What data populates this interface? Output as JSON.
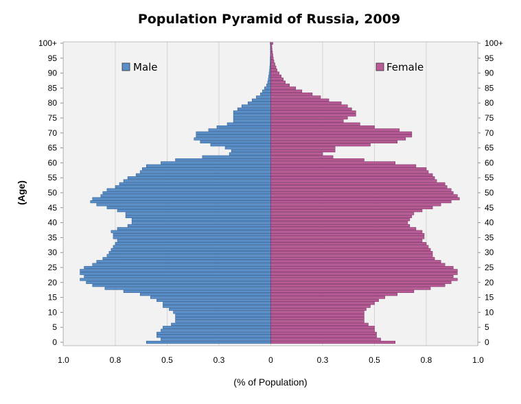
{
  "chart_data": {
    "type": "bar",
    "orientation": "horizontal-pyramid",
    "title": "Population Pyramid of Russia, 2009",
    "xlabel": "(% of Population)",
    "ylabel": "(Age)",
    "xlim": [
      0,
      1.0
    ],
    "x_tick_labels": [
      "1.0",
      "0.8",
      "0.5",
      "0.3",
      "0",
      "0.3",
      "0.5",
      "0.8",
      "1.0"
    ],
    "x_tick_values": [
      1.0,
      0.75,
      0.5,
      0.25,
      0,
      0.25,
      0.5,
      0.75,
      1.0
    ],
    "y_tick_labels": [
      "0",
      "5",
      "10",
      "15",
      "20",
      "25",
      "30",
      "35",
      "40",
      "45",
      "50",
      "55",
      "60",
      "65",
      "70",
      "75",
      "80",
      "85",
      "90",
      "95",
      "100+"
    ],
    "ages": [
      0,
      1,
      2,
      3,
      4,
      5,
      6,
      7,
      8,
      9,
      10,
      11,
      12,
      13,
      14,
      15,
      16,
      17,
      18,
      19,
      20,
      21,
      22,
      23,
      24,
      25,
      26,
      27,
      28,
      29,
      30,
      31,
      32,
      33,
      34,
      35,
      36,
      37,
      38,
      39,
      40,
      41,
      42,
      43,
      44,
      45,
      46,
      47,
      48,
      49,
      50,
      51,
      52,
      53,
      54,
      55,
      56,
      57,
      58,
      59,
      60,
      61,
      62,
      63,
      64,
      65,
      66,
      67,
      68,
      69,
      70,
      71,
      72,
      73,
      74,
      75,
      76,
      77,
      78,
      79,
      80,
      81,
      82,
      83,
      84,
      85,
      86,
      87,
      88,
      89,
      90,
      91,
      92,
      93,
      94,
      95,
      96,
      97,
      98,
      99,
      100
    ],
    "series": [
      {
        "name": "Male",
        "color": "#5b8fc9",
        "values": [
          0.6,
          0.53,
          0.55,
          0.55,
          0.53,
          0.52,
          0.48,
          0.46,
          0.46,
          0.46,
          0.47,
          0.49,
          0.52,
          0.52,
          0.55,
          0.58,
          0.63,
          0.71,
          0.8,
          0.86,
          0.89,
          0.92,
          0.9,
          0.92,
          0.92,
          0.9,
          0.86,
          0.84,
          0.81,
          0.79,
          0.78,
          0.77,
          0.76,
          0.75,
          0.74,
          0.76,
          0.76,
          0.77,
          0.74,
          0.69,
          0.67,
          0.67,
          0.7,
          0.7,
          0.74,
          0.79,
          0.84,
          0.87,
          0.86,
          0.82,
          0.81,
          0.79,
          0.75,
          0.73,
          0.71,
          0.69,
          0.65,
          0.63,
          0.62,
          0.6,
          0.53,
          0.46,
          0.33,
          0.2,
          0.19,
          0.22,
          0.29,
          0.34,
          0.37,
          0.36,
          0.36,
          0.3,
          0.26,
          0.21,
          0.18,
          0.18,
          0.18,
          0.18,
          0.16,
          0.14,
          0.11,
          0.09,
          0.07,
          0.05,
          0.04,
          0.03,
          0.02,
          0.015,
          0.012,
          0.01,
          0.008,
          0.006,
          0.005,
          0.004,
          0.003,
          0.003,
          0.002,
          0.002,
          0.002,
          0.002,
          0.003
        ]
      },
      {
        "name": "Female",
        "color": "#b85b96",
        "values": [
          0.6,
          0.53,
          0.51,
          0.51,
          0.5,
          0.5,
          0.47,
          0.45,
          0.45,
          0.45,
          0.45,
          0.46,
          0.48,
          0.5,
          0.52,
          0.55,
          0.61,
          0.69,
          0.77,
          0.84,
          0.87,
          0.9,
          0.88,
          0.9,
          0.9,
          0.88,
          0.84,
          0.82,
          0.79,
          0.78,
          0.78,
          0.77,
          0.76,
          0.75,
          0.73,
          0.74,
          0.74,
          0.73,
          0.7,
          0.67,
          0.66,
          0.67,
          0.68,
          0.69,
          0.73,
          0.78,
          0.82,
          0.87,
          0.91,
          0.9,
          0.88,
          0.87,
          0.85,
          0.84,
          0.8,
          0.79,
          0.78,
          0.76,
          0.75,
          0.7,
          0.6,
          0.45,
          0.3,
          0.25,
          0.31,
          0.31,
          0.48,
          0.61,
          0.65,
          0.68,
          0.68,
          0.62,
          0.5,
          0.43,
          0.35,
          0.37,
          0.41,
          0.41,
          0.39,
          0.37,
          0.34,
          0.28,
          0.24,
          0.2,
          0.15,
          0.12,
          0.09,
          0.07,
          0.06,
          0.05,
          0.04,
          0.03,
          0.025,
          0.02,
          0.015,
          0.012,
          0.01,
          0.008,
          0.006,
          0.005,
          0.01
        ]
      }
    ],
    "legend": [
      {
        "label": "Male",
        "placement": "top-left"
      },
      {
        "label": "Female",
        "placement": "top-right"
      }
    ],
    "grid": true
  }
}
